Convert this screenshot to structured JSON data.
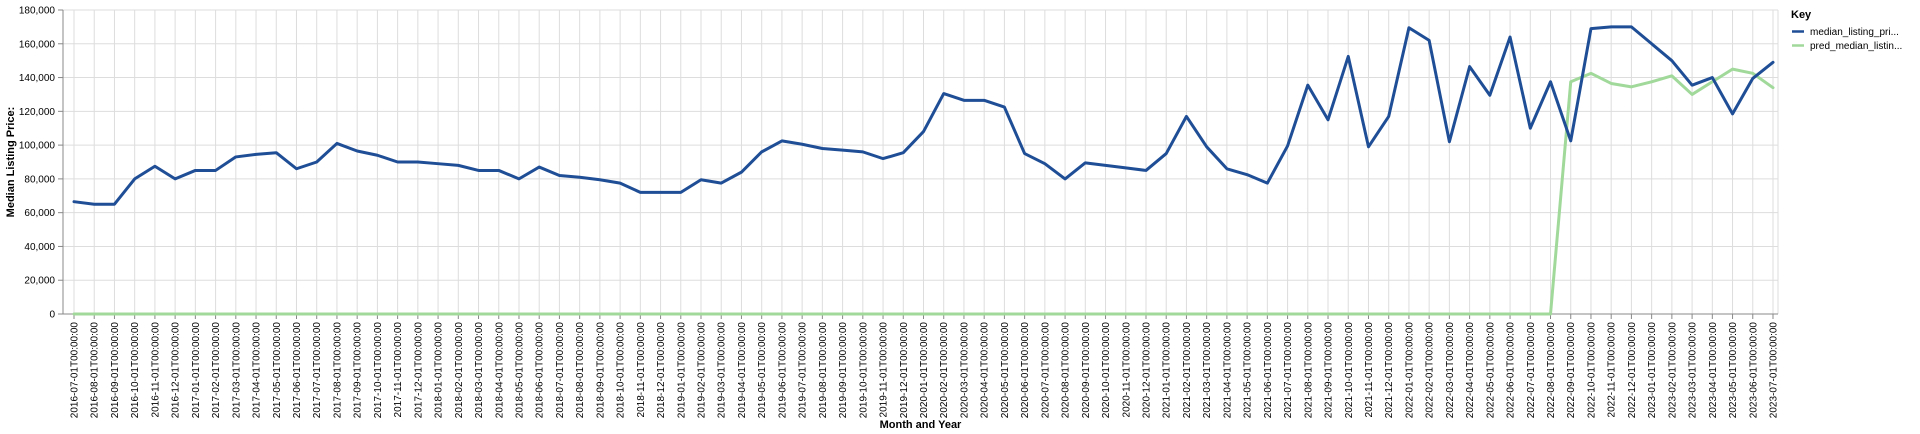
{
  "chart_data": {
    "type": "line",
    "xlabel": "Month and Year",
    "ylabel": "Median Listing Price:",
    "ylim": [
      0,
      180000
    ],
    "y_ticks": [
      0,
      20000,
      40000,
      60000,
      80000,
      100000,
      120000,
      140000,
      160000,
      180000
    ],
    "y_tick_labels": [
      "0",
      "20,000",
      "40,000",
      "60,000",
      "80,000",
      "100,000",
      "120,000",
      "140,000",
      "160,000",
      "180,000"
    ],
    "grid": true,
    "legend": {
      "title": "Key",
      "position": "top-right"
    },
    "x": [
      "2016-07-01T00:00:00",
      "2016-08-01T00:00:00",
      "2016-09-01T00:00:00",
      "2016-10-01T00:00:00",
      "2016-11-01T00:00:00",
      "2016-12-01T00:00:00",
      "2017-01-01T00:00:00",
      "2017-02-01T00:00:00",
      "2017-03-01T00:00:00",
      "2017-04-01T00:00:00",
      "2017-05-01T00:00:00",
      "2017-06-01T00:00:00",
      "2017-07-01T00:00:00",
      "2017-08-01T00:00:00",
      "2017-09-01T00:00:00",
      "2017-10-01T00:00:00",
      "2017-11-01T00:00:00",
      "2017-12-01T00:00:00",
      "2018-01-01T00:00:00",
      "2018-02-01T00:00:00",
      "2018-03-01T00:00:00",
      "2018-04-01T00:00:00",
      "2018-05-01T00:00:00",
      "2018-06-01T00:00:00",
      "2018-07-01T00:00:00",
      "2018-08-01T00:00:00",
      "2018-09-01T00:00:00",
      "2018-10-01T00:00:00",
      "2018-11-01T00:00:00",
      "2018-12-01T00:00:00",
      "2019-01-01T00:00:00",
      "2019-02-01T00:00:00",
      "2019-03-01T00:00:00",
      "2019-04-01T00:00:00",
      "2019-05-01T00:00:00",
      "2019-06-01T00:00:00",
      "2019-07-01T00:00:00",
      "2019-08-01T00:00:00",
      "2019-09-01T00:00:00",
      "2019-10-01T00:00:00",
      "2019-11-01T00:00:00",
      "2019-12-01T00:00:00",
      "2020-01-01T00:00:00",
      "2020-02-01T00:00:00",
      "2020-03-01T00:00:00",
      "2020-04-01T00:00:00",
      "2020-05-01T00:00:00",
      "2020-06-01T00:00:00",
      "2020-07-01T00:00:00",
      "2020-08-01T00:00:00",
      "2020-09-01T00:00:00",
      "2020-10-01T00:00:00",
      "2020-11-01T00:00:00",
      "2020-12-01T00:00:00",
      "2021-01-01T00:00:00",
      "2021-02-01T00:00:00",
      "2021-03-01T00:00:00",
      "2021-04-01T00:00:00",
      "2021-05-01T00:00:00",
      "2021-06-01T00:00:00",
      "2021-07-01T00:00:00",
      "2021-08-01T00:00:00",
      "2021-09-01T00:00:00",
      "2021-10-01T00:00:00",
      "2021-11-01T00:00:00",
      "2021-12-01T00:00:00",
      "2022-01-01T00:00:00",
      "2022-02-01T00:00:00",
      "2022-03-01T00:00:00",
      "2022-04-01T00:00:00",
      "2022-05-01T00:00:00",
      "2022-06-01T00:00:00",
      "2022-07-01T00:00:00",
      "2022-08-01T00:00:00",
      "2022-09-01T00:00:00",
      "2022-10-01T00:00:00",
      "2022-11-01T00:00:00",
      "2022-12-01T00:00:00",
      "2023-01-01T00:00:00",
      "2023-02-01T00:00:00",
      "2023-03-01T00:00:00",
      "2023-04-01T00:00:00",
      "2023-05-01T00:00:00",
      "2023-06-01T00:00:00",
      "2023-07-01T00:00:00"
    ],
    "series": [
      {
        "name": "median_listing_pri...",
        "color": "#1f4e96",
        "values": [
          66500,
          65000,
          65000,
          80000,
          87500,
          80000,
          85000,
          85000,
          93000,
          94500,
          95500,
          86000,
          90000,
          101000,
          96500,
          94000,
          90000,
          90000,
          89000,
          88000,
          85000,
          85000,
          80000,
          87000,
          82000,
          81000,
          79500,
          77500,
          72000,
          72000,
          72000,
          79500,
          77500,
          84000,
          96000,
          102500,
          100500,
          98000,
          97000,
          96000,
          92000,
          95500,
          108000,
          130500,
          126500,
          126500,
          122500,
          95000,
          89000,
          80000,
          89500,
          88000,
          86500,
          85000,
          95000,
          117000,
          99000,
          86000,
          82500,
          77500,
          99500,
          135500,
          115000,
          152500,
          99000,
          117000,
          169500,
          162000,
          102000,
          146500,
          129500,
          164000,
          110000,
          137500,
          102500,
          169000,
          170000,
          170000,
          160000,
          150000,
          135500,
          140000,
          118500,
          139500,
          149000
        ]
      },
      {
        "name": "pred_median_listin...",
        "color": "#a1d99b",
        "values": [
          0,
          0,
          0,
          0,
          0,
          0,
          0,
          0,
          0,
          0,
          0,
          0,
          0,
          0,
          0,
          0,
          0,
          0,
          0,
          0,
          0,
          0,
          0,
          0,
          0,
          0,
          0,
          0,
          0,
          0,
          0,
          0,
          0,
          0,
          0,
          0,
          0,
          0,
          0,
          0,
          0,
          0,
          0,
          0,
          0,
          0,
          0,
          0,
          0,
          0,
          0,
          0,
          0,
          0,
          0,
          0,
          0,
          0,
          0,
          0,
          0,
          0,
          0,
          0,
          0,
          0,
          0,
          0,
          0,
          0,
          0,
          0,
          0,
          0,
          137500,
          142500,
          136500,
          134500,
          137500,
          141000,
          130000,
          137500,
          145000,
          142500,
          134000
        ]
      }
    ]
  }
}
